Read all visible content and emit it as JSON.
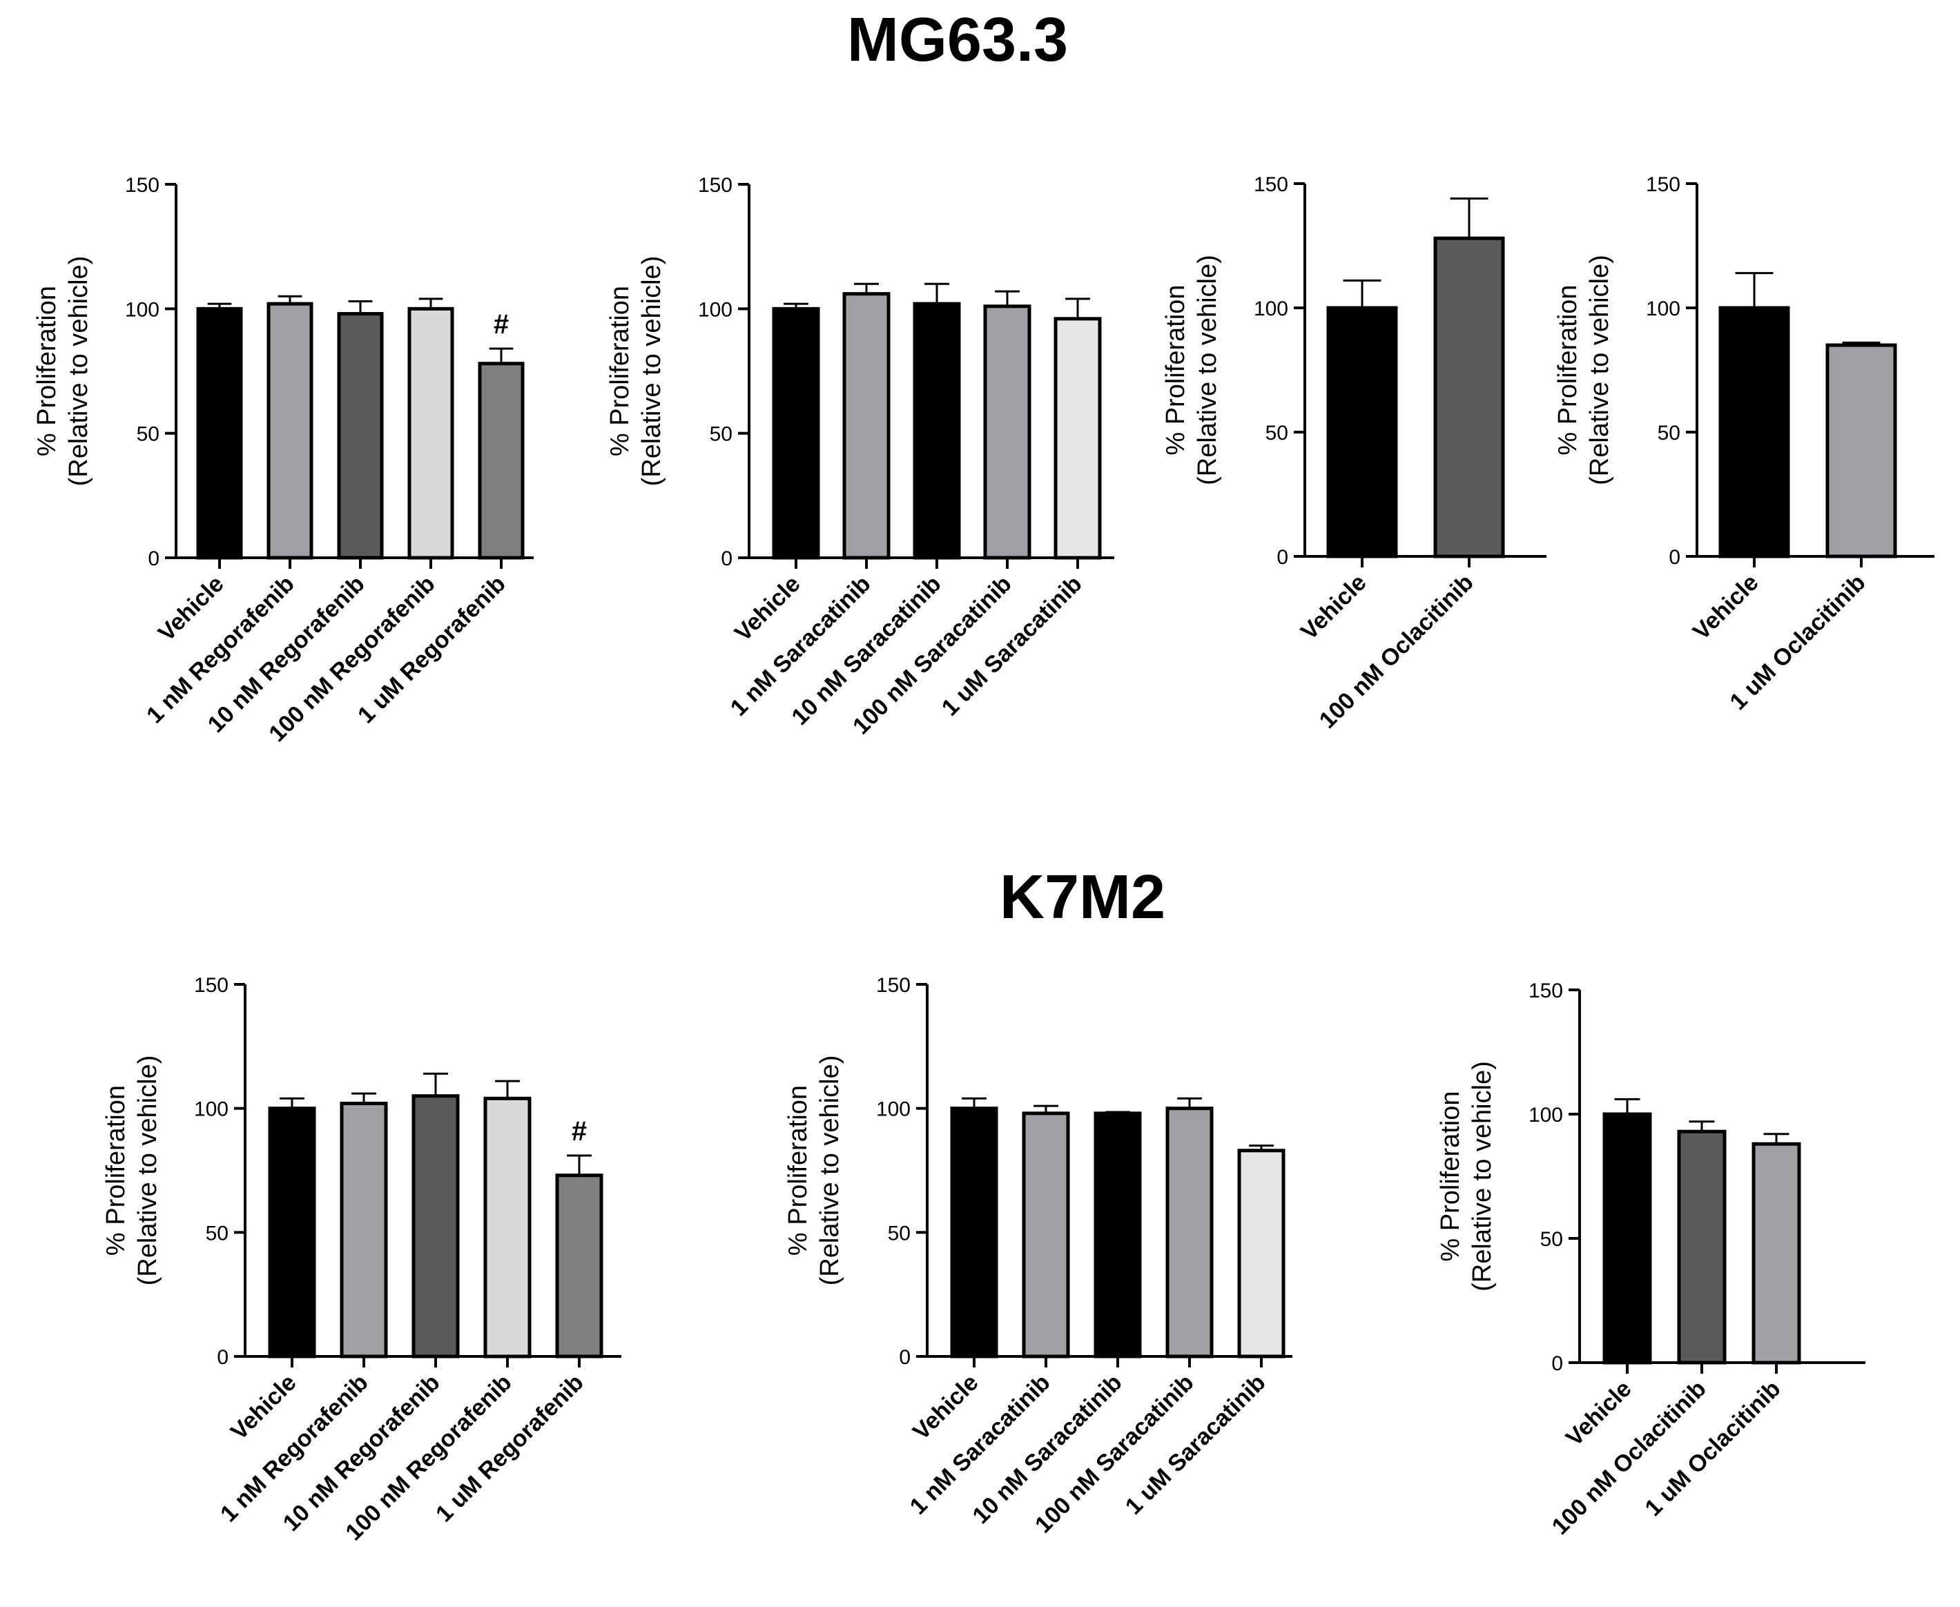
{
  "rows": [
    {
      "title": "MG63.3"
    },
    {
      "title": "K7M2"
    }
  ],
  "chart_data": [
    {
      "type": "bar",
      "row": "MG63.3",
      "categories": [
        "Vehicle",
        "1 nM Regorafenib",
        "10 nM Regorafenib",
        "100 nM Regorafenib",
        "1 uM Regorafenib"
      ],
      "values": [
        100,
        102,
        98,
        100,
        78
      ],
      "errors": [
        2,
        3,
        5,
        4,
        6
      ],
      "colors": [
        "#000000",
        "#a0a0a4",
        "#5a5a5a",
        "#d8d8d8",
        "#7f7f7f"
      ],
      "annotations": [
        "",
        "",
        "",
        "",
        "#"
      ],
      "ylabel": [
        "% Proliferation",
        "(Relative to vehicle)"
      ],
      "yticks": [
        "0",
        "50",
        "100",
        "150"
      ],
      "ylim": [
        0,
        150
      ]
    },
    {
      "type": "bar",
      "row": "MG63.3",
      "categories": [
        "Vehicle",
        "1 nM Saracatinib",
        "10 nM Saracatinib",
        "100 nM Saracatinib",
        "1 uM Saracatinib"
      ],
      "values": [
        100,
        106,
        102,
        101,
        96
      ],
      "errors": [
        2,
        4,
        8,
        6,
        8
      ],
      "colors": [
        "#000000",
        "#a0a0a4",
        "#000000",
        "#a0a0a4",
        "#e6e6e6"
      ],
      "annotations": [
        "",
        "",
        "",
        "",
        ""
      ],
      "ylabel": [
        "% Proliferation",
        "(Relative to vehicle)"
      ],
      "yticks": [
        "0",
        "50",
        "100",
        "150"
      ],
      "ylim": [
        0,
        150
      ]
    },
    {
      "type": "bar",
      "row": "MG63.3",
      "categories": [
        "Vehicle",
        "100 nM Oclacitinib"
      ],
      "values": [
        100,
        128
      ],
      "errors": [
        11,
        16
      ],
      "colors": [
        "#000000",
        "#5a5a5a"
      ],
      "annotations": [
        "",
        ""
      ],
      "ylabel": [
        "% Proliferation",
        "(Relative to vehicle)"
      ],
      "yticks": [
        "0",
        "50",
        "100",
        "150"
      ],
      "ylim": [
        0,
        150
      ]
    },
    {
      "type": "bar",
      "row": "MG63.3",
      "categories": [
        "Vehicle",
        "1 uM Oclacitinib"
      ],
      "values": [
        100,
        85
      ],
      "errors": [
        14,
        1
      ],
      "colors": [
        "#000000",
        "#a0a0a4"
      ],
      "annotations": [
        "",
        ""
      ],
      "ylabel": [
        "% Proliferation",
        "(Relative to vehicle)"
      ],
      "yticks": [
        "0",
        "50",
        "100",
        "150"
      ],
      "ylim": [
        0,
        150
      ]
    },
    {
      "type": "bar",
      "row": "K7M2",
      "categories": [
        "Vehicle",
        "1 nM Regorafenib",
        "10 nM Regorafenib",
        "100 nM Regorafenib",
        "1 uM Regorafenib"
      ],
      "values": [
        100,
        102,
        105,
        104,
        73
      ],
      "errors": [
        4,
        4,
        9,
        7,
        8
      ],
      "colors": [
        "#000000",
        "#a0a0a4",
        "#5a5a5a",
        "#d8d8d8",
        "#7f7f7f"
      ],
      "annotations": [
        "",
        "",
        "",
        "",
        "#"
      ],
      "ylabel": [
        "% Proliferation",
        "(Relative to vehicle)"
      ],
      "yticks": [
        "0",
        "50",
        "100",
        "150"
      ],
      "ylim": [
        0,
        150
      ]
    },
    {
      "type": "bar",
      "row": "K7M2",
      "categories": [
        "Vehicle",
        "1 nM Saracatinib",
        "10 nM Saracatinib",
        "100 nM Saracatinib",
        "1 uM Saracatinib"
      ],
      "values": [
        100,
        98,
        98,
        100,
        83
      ],
      "errors": [
        4,
        3,
        0.5,
        4,
        2
      ],
      "colors": [
        "#000000",
        "#a0a0a4",
        "#000000",
        "#a0a0a4",
        "#e6e6e6"
      ],
      "annotations": [
        "",
        "",
        "",
        "",
        ""
      ],
      "ylabel": [
        "% Proliferation",
        "(Relative to vehicle)"
      ],
      "yticks": [
        "0",
        "50",
        "100",
        "150"
      ],
      "ylim": [
        0,
        150
      ]
    },
    {
      "type": "bar",
      "row": "K7M2",
      "categories": [
        "Vehicle",
        "100 nM Oclacitinib",
        "1 uM Oclacitinib"
      ],
      "values": [
        100,
        93,
        88
      ],
      "errors": [
        6,
        4,
        4
      ],
      "colors": [
        "#000000",
        "#5a5a5a",
        "#a0a0a4"
      ],
      "annotations": [
        "",
        "",
        ""
      ],
      "ylabel": [
        "% Proliferation",
        "(Relative to vehicle)"
      ],
      "yticks": [
        "0",
        "50",
        "100",
        "150"
      ],
      "ylim": [
        0,
        150
      ]
    }
  ]
}
